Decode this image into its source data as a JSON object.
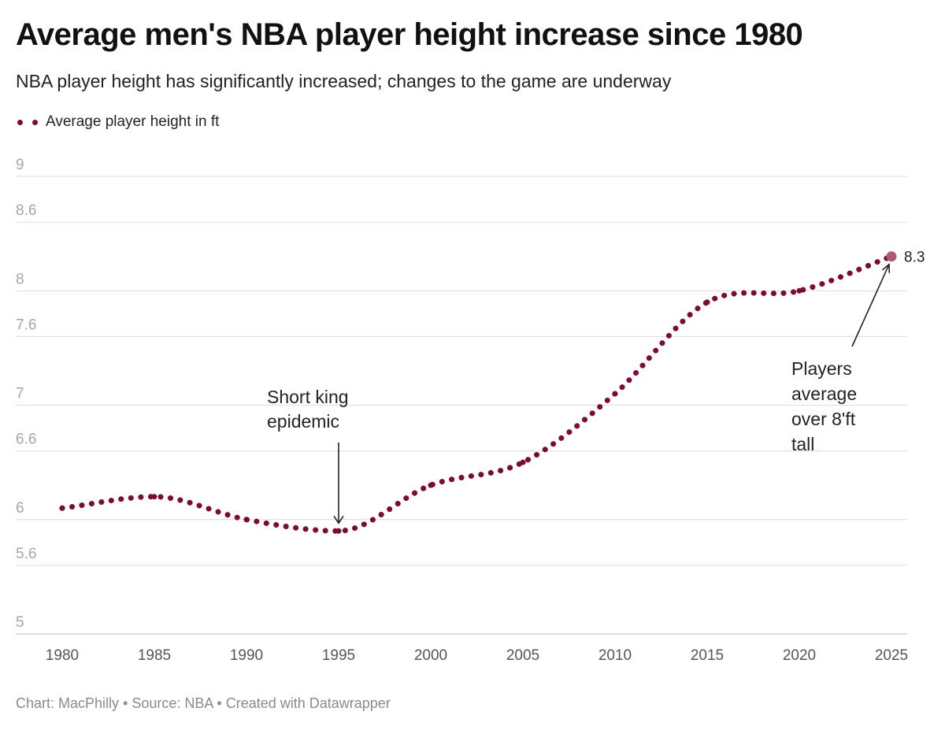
{
  "header": {
    "title": "Average men's NBA player height increase since 1980",
    "subtitle": "NBA player height has significantly increased; changes to the game are underway"
  },
  "legend": {
    "label": "Average player height in ft",
    "color": "#7d0a36"
  },
  "footer": {
    "credit": "Chart: MacPhilly • Source: NBA • Created with Datawrapper"
  },
  "chart_data": {
    "type": "line",
    "x": [
      1980,
      1985,
      1990,
      1995,
      2000,
      2005,
      2010,
      2015,
      2020,
      2025
    ],
    "series": [
      {
        "name": "Average player height in ft",
        "values": [
          6.1,
          6.2,
          6.0,
          5.9,
          6.3,
          6.5,
          7.1,
          7.9,
          8.0,
          8.3
        ],
        "color": "#7d0a36",
        "style": "dotted"
      }
    ],
    "xlim": [
      1980,
      2025
    ],
    "ylim": [
      5,
      9
    ],
    "y_ticks": [
      5,
      5.6,
      6,
      6.6,
      7,
      7.6,
      8,
      8.6,
      9
    ],
    "x_ticks": [
      1980,
      1985,
      1990,
      1995,
      2000,
      2005,
      2010,
      2015,
      2020,
      2025
    ],
    "grid": true,
    "legend_position": "top-left",
    "end_label": "8.3",
    "annotations": [
      {
        "lines": [
          "Short king",
          "epidemic"
        ],
        "x": 1995,
        "y": 5.9
      },
      {
        "lines": [
          "Players",
          "average",
          "over 8'ft",
          "tall"
        ],
        "x": 2025,
        "y": 8.3
      }
    ]
  }
}
